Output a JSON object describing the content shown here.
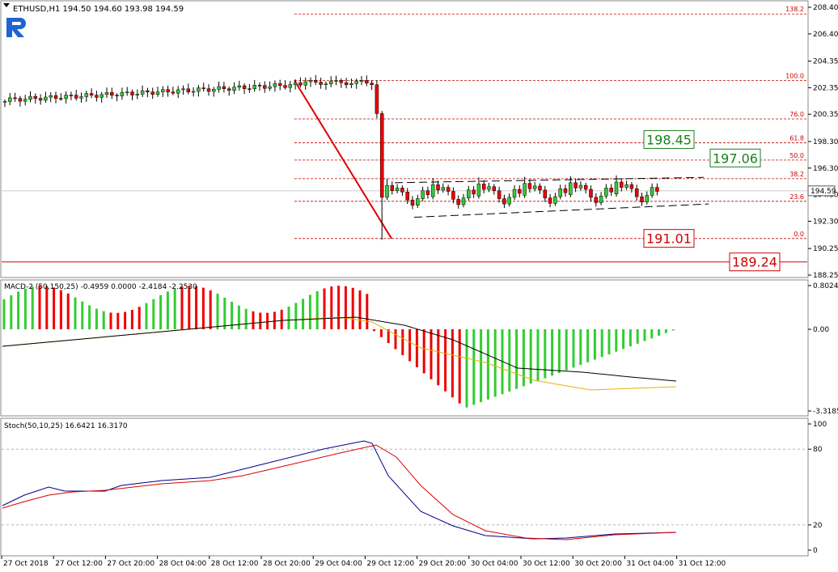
{
  "symbol_header": "ETHUSD,H1  194.50 194.60 193.98 194.59",
  "main": {
    "y_ticks": [
      "208.40",
      "206.40",
      "204.35",
      "202.35",
      "200.35",
      "198.30",
      "196.30",
      "194.30",
      "192.30",
      "190.25",
      "188.25"
    ],
    "fib_levels": [
      {
        "label": "138.2",
        "price": 207.9
      },
      {
        "label": "100.0",
        "price": 202.9
      },
      {
        "label": "76.0",
        "price": 200.0
      },
      {
        "label": "61.8",
        "price": 198.2
      },
      {
        "label": "50.0",
        "price": 196.9
      },
      {
        "label": "38.2",
        "price": 195.5
      },
      {
        "label": "23.6",
        "price": 193.8
      },
      {
        "label": "0.0",
        "price": 191.0
      }
    ],
    "current_price": "194.59",
    "current_price_value": 194.59,
    "annotations": [
      {
        "text": "198.45",
        "price": 198.45,
        "color": "#1a7f1a"
      },
      {
        "text": "197.06",
        "price": 197.06,
        "color": "#1a7f1a"
      },
      {
        "text": "191.01",
        "price": 191.01,
        "color": "#cc0000"
      },
      {
        "text": "189.24",
        "price": 189.24,
        "color": "#cc0000"
      }
    ]
  },
  "macd": {
    "label": "MACD-2 (50,150,25) -0.4959 0.0000 -2.4184 -2.2530",
    "y_ticks": [
      "0.8024",
      "0.00",
      "-3.3185"
    ]
  },
  "stoch": {
    "label": "Stoch(50,10,25) 16.6421 16.3170",
    "y_ticks": [
      "100",
      "80",
      "20",
      "0"
    ]
  },
  "x_ticks": [
    "27 Oct 2018",
    "27 Oct 12:00",
    "27 Oct 20:00",
    "28 Oct 04:00",
    "28 Oct 12:00",
    "28 Oct 20:00",
    "29 Oct 04:00",
    "29 Oct 12:00",
    "29 Oct 20:00",
    "30 Oct 04:00",
    "30 Oct 12:00",
    "30 Oct 20:00",
    "31 Oct 04:00",
    "31 Oct 12:00"
  ],
  "colors": {
    "bull": "#33cc33",
    "bear": "#ee0000",
    "grid": "#c8c8c8",
    "fib": "#cc0000"
  }
}
